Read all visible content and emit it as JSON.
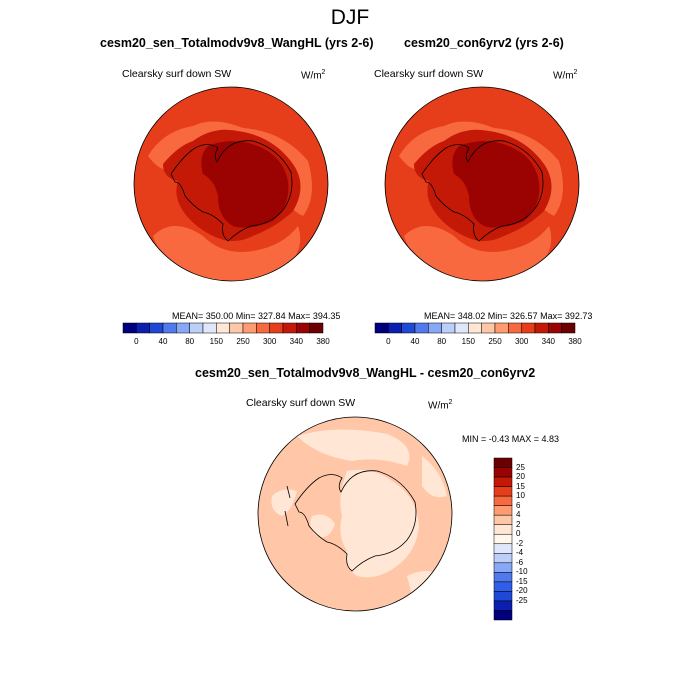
{
  "title": "DJF",
  "colors": {
    "abs_levels": [
      "#00007f",
      "#0a1fb0",
      "#1f48d6",
      "#4f79ec",
      "#87a8f6",
      "#bccff9",
      "#dfe7fb",
      "#ffe6d5",
      "#ffc7a7",
      "#ff9b70",
      "#f8693f",
      "#e63e1b",
      "#c51908",
      "#9b0303",
      "#6a0000"
    ],
    "diff_levels": [
      "#00007f",
      "#0a1fb0",
      "#1f48d6",
      "#2f5fe8",
      "#4f79ec",
      "#87a8f6",
      "#bccff9",
      "#dfe7fb",
      "#fff6ec",
      "#ffe6d5",
      "#ffc7a7",
      "#ff9b70",
      "#f8693f",
      "#e63e1b",
      "#c51908",
      "#9b0303",
      "#6a0000"
    ],
    "ocean_abs": "#e63e1b",
    "ice_edge": "#f8693f",
    "coast_band": "#c51908",
    "interior": "#9b0303",
    "diff_base": "#ffc7a7",
    "diff_light": "#ffe6d5"
  },
  "panels": [
    {
      "title": "cesm20_sen_Totalmodv9v8_WangHL (yrs 2-6)",
      "variable": "Clearsky surf down SW",
      "units": "W/m",
      "units_exp": "2",
      "stats": "MEAN= 350.00  Min= 327.84  Max= 394.35",
      "colorbar_ticks": [
        "0",
        "40",
        "80",
        "150",
        "250",
        "300",
        "340",
        "380"
      ]
    },
    {
      "title": "cesm20_con6yrv2 (yrs 2-6)",
      "variable": "Clearsky surf down SW",
      "units": "W/m",
      "units_exp": "2",
      "stats": "MEAN= 348.02  Min= 326.57  Max= 392.73",
      "colorbar_ticks": [
        "0",
        "40",
        "80",
        "150",
        "250",
        "300",
        "340",
        "380"
      ]
    }
  ],
  "difference": {
    "title": "cesm20_sen_Totalmodv9v8_WangHL - cesm20_con6yrv2",
    "variable": "Clearsky surf down SW",
    "units": "W/m",
    "units_exp": "2",
    "stats": "MIN =  -0.43 MAX =   4.83",
    "colorbar_ticks": [
      "25",
      "20",
      "15",
      "10",
      "6",
      "4",
      "2",
      "0",
      "-2",
      "-4",
      "-6",
      "-10",
      "-15",
      "-20",
      "-25"
    ]
  }
}
